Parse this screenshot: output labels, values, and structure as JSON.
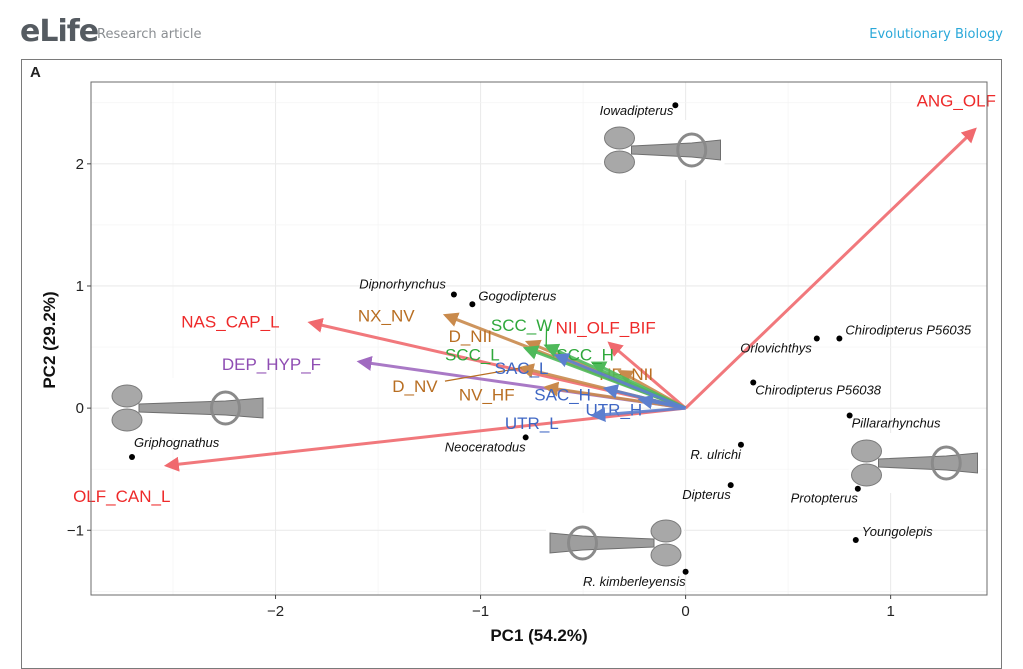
{
  "header": {
    "logo": "eLife",
    "article_type": "Research article",
    "subject": "Evolutionary Biology"
  },
  "figure": {
    "panel_label": "A"
  },
  "colors": {
    "red": "#f0696e",
    "red_text": "#ee2a2a",
    "orange": "#c98a4c",
    "orange_text": "#b86e22",
    "green": "#4fb95a",
    "green_text": "#2fa83b",
    "blue": "#5c7fcf",
    "blue_text": "#3f67c4",
    "purple": "#a06ac0",
    "purple_text": "#8f4db3"
  },
  "chart_data": {
    "type": "scatter",
    "subtype": "pca-biplot",
    "xlabel": "PC1 (54.2%)",
    "ylabel": "PC2 (29.2%)",
    "xlim": [
      -2.9,
      1.47
    ],
    "ylim": [
      -1.53,
      2.67
    ],
    "xticks": [
      -2,
      -1,
      0,
      1
    ],
    "xtick_labels": [
      "−2",
      "−1",
      "0",
      "1"
    ],
    "yticks": [
      -1,
      0,
      1,
      2
    ],
    "ytick_labels": [
      "−1",
      "0",
      "1",
      "2"
    ],
    "grid": true,
    "points": [
      {
        "name": "Iowadipterus",
        "x": -0.05,
        "y": 2.48,
        "label_pos": "left"
      },
      {
        "name": "Dipnorhynchus",
        "x": -1.13,
        "y": 0.93,
        "label_pos": "upper-left"
      },
      {
        "name": "Gogodipterus",
        "x": -1.04,
        "y": 0.85,
        "label_pos": "upper-right"
      },
      {
        "name": "Chirodipterus P56035",
        "x": 0.75,
        "y": 0.57,
        "label_pos": "upper-right"
      },
      {
        "name": "Orlovichthys",
        "x": 0.64,
        "y": 0.57,
        "label_pos": "lower-left"
      },
      {
        "name": "Chirodipterus P56038",
        "x": 0.33,
        "y": 0.21,
        "label_pos": "lower-right"
      },
      {
        "name": "Pillararhynchus",
        "x": 0.8,
        "y": -0.06,
        "label_pos": "lower-right"
      },
      {
        "name": "R. ulrichi",
        "x": 0.27,
        "y": -0.3,
        "label_pos": "lower-left"
      },
      {
        "name": "Griphognathus",
        "x": -2.7,
        "y": -0.4,
        "label_pos": "upper-right"
      },
      {
        "name": "Neoceratodus",
        "x": -0.78,
        "y": -0.24,
        "label_pos": "lower-left"
      },
      {
        "name": "Dipterus",
        "x": 0.22,
        "y": -0.63,
        "label_pos": "lower-left"
      },
      {
        "name": "Protopterus",
        "x": 0.84,
        "y": -0.66,
        "label_pos": "lower-left"
      },
      {
        "name": "Youngolepis",
        "x": 0.83,
        "y": -1.08,
        "label_pos": "upper-right"
      },
      {
        "name": "R. kimberleyensis",
        "x": 0.0,
        "y": -1.34,
        "label_pos": "lower-left"
      }
    ],
    "vectors": [
      {
        "name": "ANG_OLF",
        "x": 1.41,
        "y": 2.28,
        "group": "red",
        "lx": 1.32,
        "ly": 2.52
      },
      {
        "name": "NAS_CAP_L",
        "x": -1.83,
        "y": 0.7,
        "group": "red",
        "lx": -2.22,
        "ly": 0.71
      },
      {
        "name": "OLF_CAN_L",
        "x": -2.53,
        "y": -0.47,
        "group": "red",
        "lx": -2.75,
        "ly": -0.72
      },
      {
        "name": "NII_OLF_BIF",
        "x": -0.37,
        "y": 0.53,
        "group": "red",
        "lx": -0.39,
        "ly": 0.66
      },
      {
        "name": "DEP_HYP_F",
        "x": -1.59,
        "y": 0.38,
        "group": "purple",
        "lx": -2.02,
        "ly": 0.36
      },
      {
        "name": "NX_NV",
        "x": -1.17,
        "y": 0.76,
        "group": "orange",
        "lx": -1.46,
        "ly": 0.76
      },
      {
        "name": "D_NII",
        "x": -0.77,
        "y": 0.54,
        "group": "orange",
        "lx": -1.05,
        "ly": 0.59
      },
      {
        "name": "D_NV",
        "x": -0.8,
        "y": 0.33,
        "group": "orange",
        "lx": -1.32,
        "ly": 0.18,
        "leader": true
      },
      {
        "name": "NV_HF",
        "x": -0.68,
        "y": 0.17,
        "group": "orange",
        "lx": -0.97,
        "ly": 0.11
      },
      {
        "name": "HF_NII",
        "x": -0.32,
        "y": 0.3,
        "group": "orange",
        "lx": -0.29,
        "ly": 0.28
      },
      {
        "name": "SCC_W",
        "x": -0.68,
        "y": 0.51,
        "group": "green",
        "lx": -0.8,
        "ly": 0.68,
        "leader": true
      },
      {
        "name": "SCC_L",
        "x": -0.78,
        "y": 0.49,
        "group": "green",
        "lx": -1.04,
        "ly": 0.44
      },
      {
        "name": "SCC_H",
        "x": -0.45,
        "y": 0.37,
        "group": "green",
        "lx": -0.49,
        "ly": 0.44
      },
      {
        "name": "SAC_L",
        "x": -0.63,
        "y": 0.43,
        "group": "blue",
        "lx": -0.8,
        "ly": 0.33
      },
      {
        "name": "SAC_H",
        "x": -0.39,
        "y": 0.16,
        "group": "blue",
        "lx": -0.6,
        "ly": 0.11
      },
      {
        "name": "UTR_H",
        "x": -0.22,
        "y": 0.07,
        "group": "blue",
        "lx": -0.35,
        "ly": -0.01
      },
      {
        "name": "UTR_L",
        "x": -0.45,
        "y": -0.06,
        "group": "blue",
        "lx": -0.75,
        "ly": -0.12
      }
    ],
    "images": [
      {
        "name": "iowadipterus-endocast",
        "near": "Iowadipterus"
      },
      {
        "name": "griphognathus-endocast",
        "near": "Griphognathus"
      },
      {
        "name": "r-kimberleyensis-endocast",
        "near": "R. kimberleyensis"
      },
      {
        "name": "protopterus-endocast",
        "near": "Protopterus"
      }
    ]
  }
}
